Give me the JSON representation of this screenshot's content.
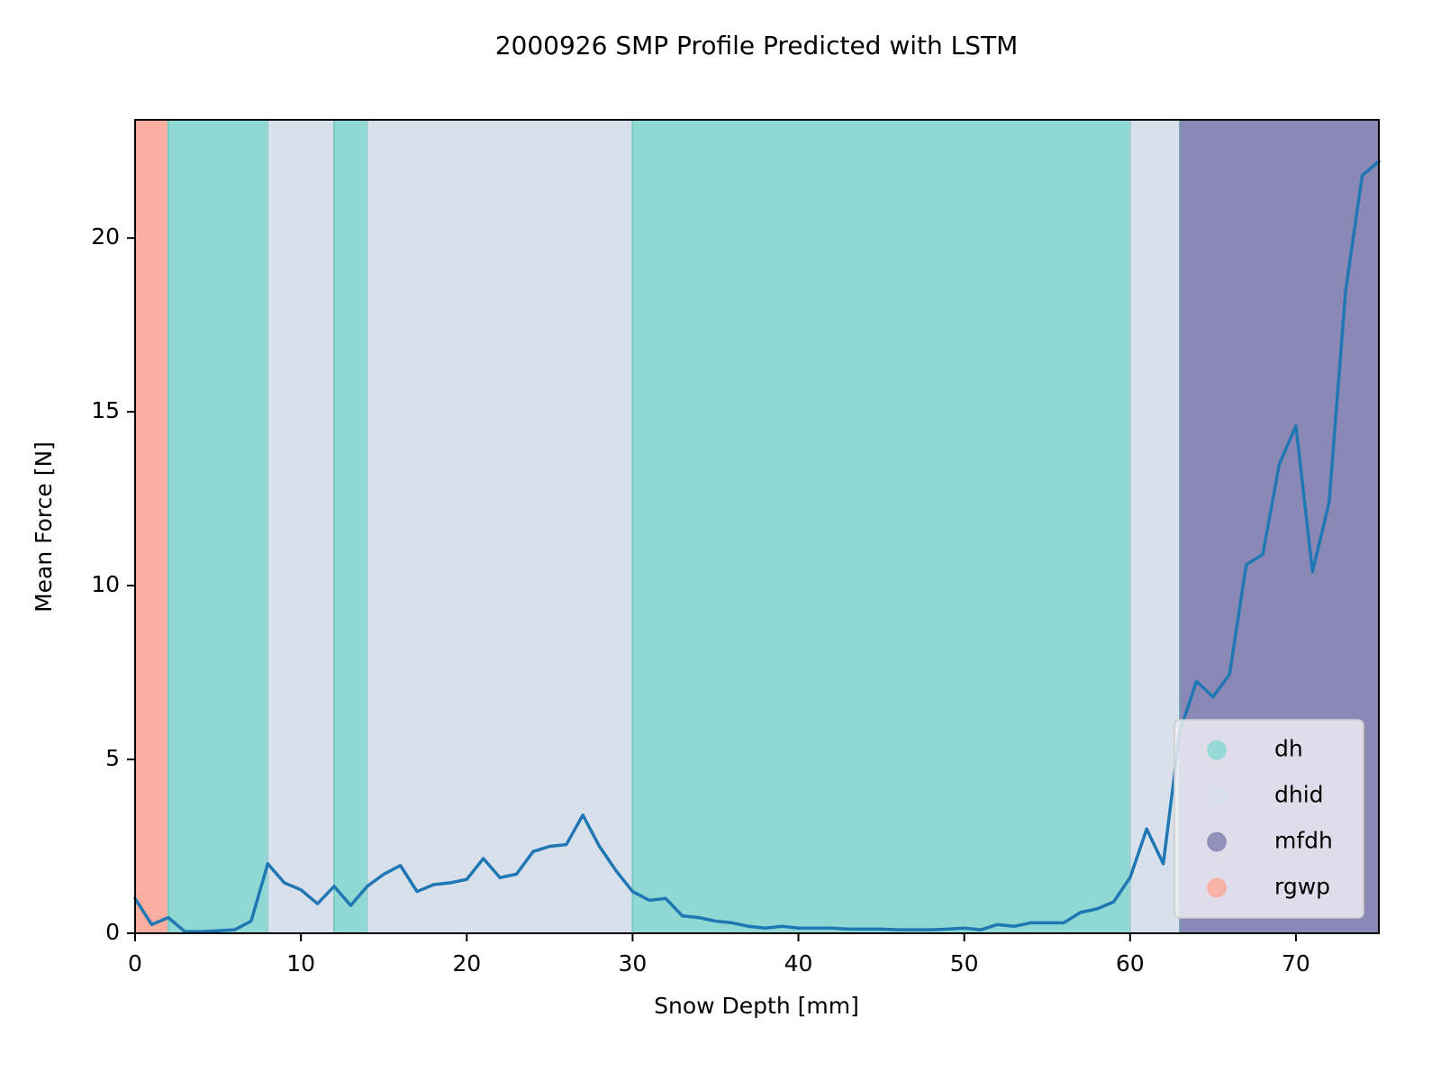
{
  "chart_data": {
    "type": "line",
    "title": "2000926 SMP Profile Predicted with LSTM",
    "xlabel": "Snow Depth [mm]",
    "ylabel": "Mean Force [N]",
    "xlim": [
      0,
      75
    ],
    "ylim": [
      0,
      23.4
    ],
    "x_ticks": [
      0,
      10,
      20,
      30,
      40,
      50,
      60,
      70
    ],
    "y_ticks": [
      0,
      5,
      10,
      15,
      20
    ],
    "grid": false,
    "legend_position": "lower-right",
    "legend": [
      {
        "label": "dh",
        "color": "#8fd8d3"
      },
      {
        "label": "dhid",
        "color": "#d8e0ec"
      },
      {
        "label": "mfdh",
        "color": "#8a89b6"
      },
      {
        "label": "rgwp",
        "color": "#f9ae9f"
      }
    ],
    "line_color": "#1f77b4",
    "background_bands": [
      {
        "from": 0,
        "to": 2,
        "label": "rgwp",
        "color": "#f9ae9f"
      },
      {
        "from": 2,
        "to": 8,
        "label": "dh",
        "color": "#8fd8d3"
      },
      {
        "from": 8,
        "to": 12,
        "label": "dhid",
        "color": "#d8e0ec"
      },
      {
        "from": 12,
        "to": 14,
        "label": "dh",
        "color": "#8fd8d3"
      },
      {
        "from": 14,
        "to": 30,
        "label": "dhid",
        "color": "#d8e0ec"
      },
      {
        "from": 30,
        "to": 60,
        "label": "dh",
        "color": "#8fd8d3"
      },
      {
        "from": 60,
        "to": 63,
        "label": "dhid",
        "color": "#d8e0ec"
      },
      {
        "from": 63,
        "to": 75,
        "label": "mfdh",
        "color": "#8a89b6"
      }
    ],
    "series": [
      {
        "x": [
          0,
          1,
          2,
          3,
          4,
          5,
          6,
          7,
          8,
          9,
          10,
          11,
          12,
          13,
          14,
          15,
          16,
          17,
          18,
          19,
          20,
          21,
          22,
          23,
          24,
          25,
          26,
          27,
          28,
          29,
          30,
          31,
          32,
          33,
          34,
          35,
          36,
          37,
          38,
          39,
          40,
          41,
          42,
          43,
          44,
          45,
          46,
          47,
          48,
          49,
          50,
          51,
          52,
          53,
          54,
          55,
          56,
          57,
          58,
          59,
          60,
          61,
          62,
          63,
          64,
          65,
          66,
          67,
          68,
          69,
          70,
          71,
          72,
          73,
          74,
          75
        ],
        "values": [
          1.0,
          0.25,
          0.45,
          0.05,
          0.05,
          0.07,
          0.1,
          0.35,
          2.0,
          1.45,
          1.25,
          0.85,
          1.35,
          0.8,
          1.35,
          1.7,
          1.95,
          1.2,
          1.4,
          1.45,
          1.55,
          2.15,
          1.6,
          1.7,
          2.35,
          2.5,
          2.55,
          3.4,
          2.5,
          1.8,
          1.2,
          0.95,
          1.0,
          0.5,
          0.45,
          0.35,
          0.3,
          0.2,
          0.15,
          0.2,
          0.15,
          0.15,
          0.15,
          0.12,
          0.12,
          0.12,
          0.1,
          0.1,
          0.1,
          0.12,
          0.15,
          0.1,
          0.25,
          0.2,
          0.3,
          0.3,
          0.3,
          0.6,
          0.7,
          0.9,
          1.6,
          3.0,
          2.0,
          5.8,
          7.25,
          6.8,
          7.45,
          10.6,
          10.9,
          13.5,
          14.6,
          10.4,
          12.4,
          18.5,
          21.8,
          22.2
        ]
      }
    ]
  }
}
